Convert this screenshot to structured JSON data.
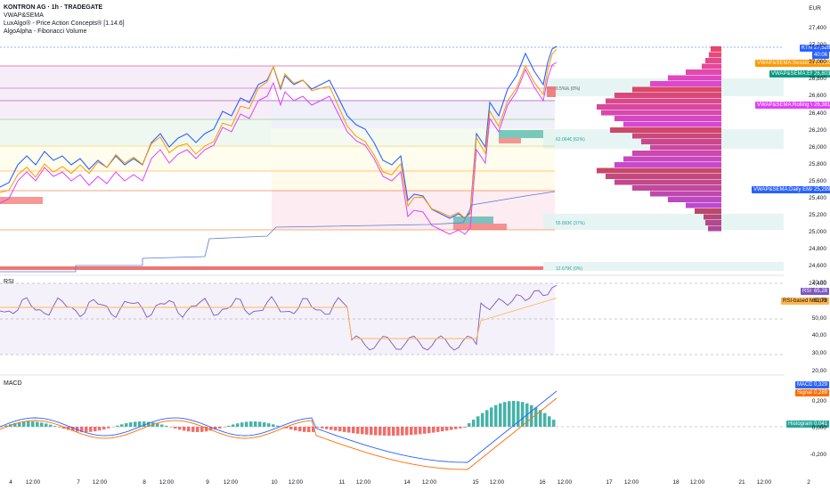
{
  "header": {
    "title": "KONTRON AG · 1h · TRADEGATE",
    "indicators": [
      "VWAP&SEMA",
      "LuxAlgo® - Price Action Concepts® [1.14.6]",
      "AlgoAlpha - Fibonacci Volume"
    ]
  },
  "currency": "EUR",
  "price_axis": [
    "27,400",
    "27,200",
    "27,000",
    "26,800",
    "26,600",
    "26,400",
    "26,200",
    "26,000",
    "25,800",
    "25,600",
    "25,400",
    "25,200",
    "25,000",
    "24,800",
    "24,600",
    "24,400"
  ],
  "price_tags": {
    "ktn": "KTN",
    "ktn_price": "27,528",
    "ktn_time": "40:06",
    "session_vwap_label": "VWAP&SEMA:Session VWAP",
    "session_vwap": "26,952",
    "ema9_label": "VWAP&SEMA:EMA 9",
    "ema9": "26,803",
    "rolling_vwap_label": "VWAP&SEMA:Rolling VWAP",
    "rolling_vwap": "26,381",
    "daily_ema_label": "VWAP&SEMA:Daily EMA (D1)",
    "daily_ema": "25,299"
  },
  "fib_labels": [
    "0.5%ℝ (0%)",
    "62.064€ (62%)",
    "55.893€ (37%)",
    "12.679€ (0%)"
  ],
  "rsi": {
    "title": "RSI",
    "axis": [
      "70,00",
      "60,00",
      "50,00",
      "40,00",
      "30,00",
      "20,00"
    ],
    "tag_label": "RSI",
    "value": "65,28",
    "ma_label": "RSI-based MA",
    "ma_value": "62,78"
  },
  "macd": {
    "title": "MACD",
    "axis": [
      "0,200",
      "0,000",
      "-0,200"
    ],
    "macd_label": "MACD",
    "macd_value": "0,329",
    "signal_label": "Signal",
    "signal_value": "0,289",
    "hist_label": "Histogram",
    "hist_value": "0,041"
  },
  "time_axis": [
    "4",
    "12:00",
    "7",
    "12:00",
    "8",
    "12:00",
    "9",
    "12:00",
    "10",
    "12:00",
    "11",
    "12:00",
    "14",
    "12:00",
    "15",
    "12:00",
    "16",
    "12:00",
    "17",
    "12:00",
    "18",
    "12:00",
    "21",
    "12:00",
    "2"
  ],
  "colors": {
    "price_line": "#2962ff",
    "ema": "#ff9800",
    "rolling_vwap": "#e040fb",
    "teal": "#26a69a",
    "red": "#ef5350",
    "rsi": "#7e57c2",
    "rsi_ma": "#ffb74d",
    "macd": "#2962ff",
    "signal": "#ff6d00"
  }
}
